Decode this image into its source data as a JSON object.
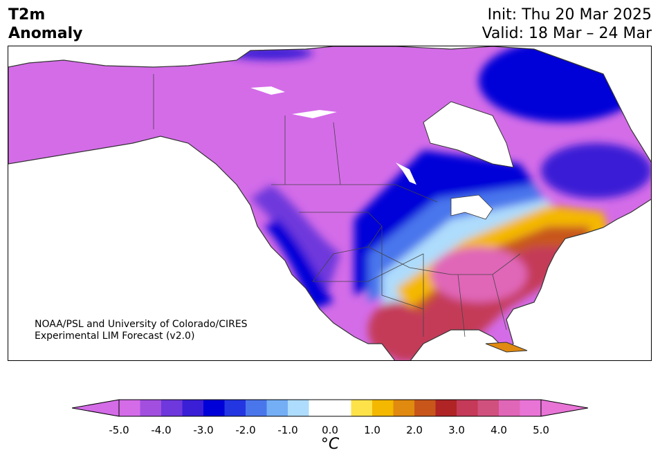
{
  "header": {
    "title": "T2m\nAnomaly",
    "init": "Init: Thu 20 Mar 2025",
    "valid": "Valid: 18 Mar – 24 Mar"
  },
  "map": {
    "credit_line1": "NOAA/PSL and University of Colorado/CIRES",
    "credit_line2": "Experimental LIM Forecast (v2.0)"
  },
  "colorbar": {
    "ticks": [
      "-5.0",
      "-4.0",
      "-3.0",
      "-2.0",
      "-1.0",
      "0.0",
      "1.0",
      "2.0",
      "3.0",
      "4.0",
      "5.0"
    ],
    "unit": "°C",
    "colors": [
      "#d46ce8",
      "#a24fe0",
      "#6e38dc",
      "#3a1fd6",
      "#0000d8",
      "#2436e2",
      "#4a76ec",
      "#74aef4",
      "#aedcfc",
      "#ffffff",
      "#ffffff",
      "#fde24a",
      "#f4b800",
      "#e08a10",
      "#c8561a",
      "#b02426",
      "#c43a58",
      "#d0507e",
      "#e066b8",
      "#e874d6"
    ]
  }
}
